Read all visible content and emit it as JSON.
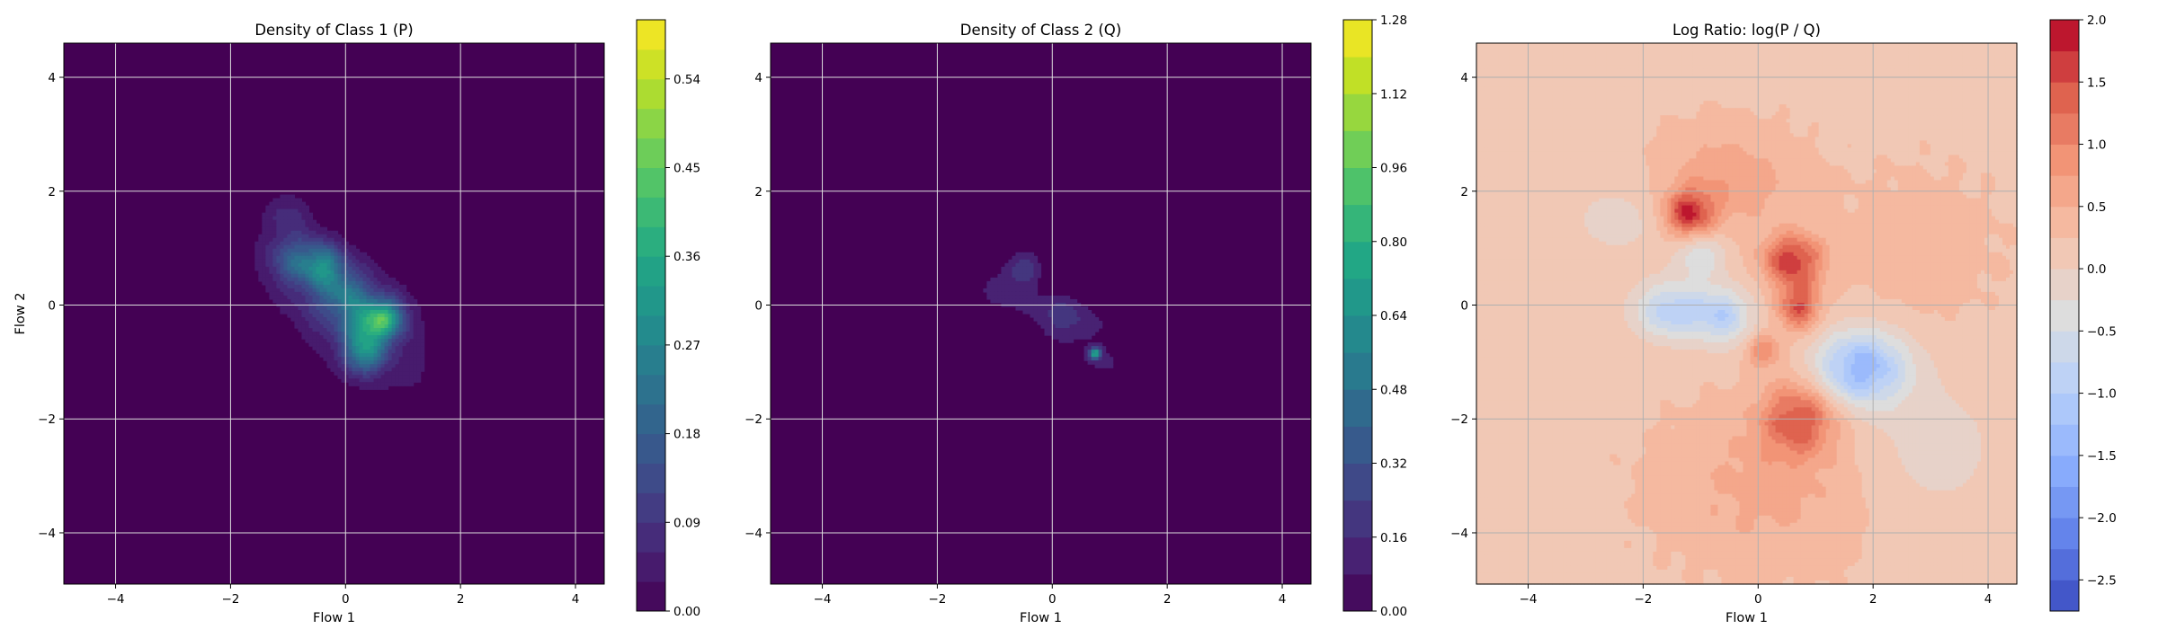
{
  "figure_title": "",
  "chart_data": [
    {
      "type": "heatmap",
      "subtype": "filled-contour",
      "title": "Density of Class 1 (P)",
      "xlabel": "Flow 1",
      "ylabel": "Flow 2",
      "xlim": [
        -4.9,
        4.5
      ],
      "ylim": [
        -4.9,
        4.6
      ],
      "xticks": [
        -4,
        -2,
        0,
        2,
        4
      ],
      "yticks": [
        -4,
        -2,
        0,
        2,
        4
      ],
      "grid": true,
      "colormap": "viridis",
      "background_color": "#440154",
      "colorbar": {
        "range": [
          0.0,
          0.6
        ],
        "levels": 20,
        "ticks": [
          0.0,
          0.09,
          0.18,
          0.27,
          0.36,
          0.45,
          0.54
        ],
        "tick_labels": [
          "0.00",
          "0.09",
          "0.18",
          "0.27",
          "0.36",
          "0.45",
          "0.54"
        ]
      },
      "blobs": [
        {
          "x": 0.0,
          "y": -0.1,
          "sx": 0.85,
          "sy": 0.85,
          "rho": -0.6,
          "v": 0.11
        },
        {
          "x": -0.4,
          "y": 0.7,
          "sx": 0.25,
          "sy": 0.25,
          "rho": 0.0,
          "v": 0.2
        },
        {
          "x": 0.7,
          "y": -0.2,
          "sx": 0.25,
          "sy": 0.25,
          "rho": 0.0,
          "v": 0.22
        },
        {
          "x": 0.4,
          "y": -0.4,
          "sx": 0.25,
          "sy": 0.25,
          "rho": 0.0,
          "v": 0.24
        },
        {
          "x": 0.3,
          "y": -0.9,
          "sx": 0.22,
          "sy": 0.22,
          "rho": 0.0,
          "v": 0.2
        },
        {
          "x": -0.9,
          "y": 0.8,
          "sx": 0.3,
          "sy": 0.3,
          "rho": 0.0,
          "v": 0.12
        },
        {
          "x": 0.0,
          "y": 0.2,
          "sx": 0.3,
          "sy": 0.3,
          "rho": 0.0,
          "v": 0.14
        },
        {
          "x": -1.0,
          "y": 1.6,
          "sx": 0.25,
          "sy": 0.25,
          "rho": 0.0,
          "v": 0.06
        }
      ]
    },
    {
      "type": "heatmap",
      "subtype": "filled-contour",
      "title": "Density of Class 2 (Q)",
      "xlabel": "Flow 1",
      "ylabel": "",
      "xlim": [
        -4.9,
        4.5
      ],
      "ylim": [
        -4.9,
        4.6
      ],
      "xticks": [
        -4,
        -2,
        0,
        2,
        4
      ],
      "yticks": [
        -4,
        -2,
        0,
        2,
        4
      ],
      "grid": true,
      "colormap": "viridis",
      "background_color": "#440154",
      "colorbar": {
        "range": [
          0.0,
          1.28
        ],
        "levels": 16,
        "ticks": [
          0.0,
          0.16,
          0.32,
          0.48,
          0.64,
          0.8,
          0.96,
          1.12,
          1.28
        ],
        "tick_labels": [
          "0.00",
          "0.16",
          "0.32",
          "0.48",
          "0.64",
          "0.80",
          "0.96",
          "1.12",
          "1.28"
        ]
      },
      "blobs": [
        {
          "x": 0.0,
          "y": -0.1,
          "sx": 0.85,
          "sy": 0.35,
          "rho": -0.75,
          "v": 0.1
        },
        {
          "x": -0.5,
          "y": 0.65,
          "sx": 0.2,
          "sy": 0.2,
          "rho": 0.0,
          "v": 0.22
        },
        {
          "x": 0.75,
          "y": -0.85,
          "sx": 0.07,
          "sy": 0.07,
          "rho": 0.0,
          "v": 0.7
        },
        {
          "x": 0.2,
          "y": -0.3,
          "sx": 0.3,
          "sy": 0.3,
          "rho": 0.0,
          "v": 0.12
        },
        {
          "x": 0.9,
          "y": -1.0,
          "sx": 0.3,
          "sy": 0.25,
          "rho": 0.0,
          "v": 0.09
        },
        {
          "x": -0.9,
          "y": 0.3,
          "sx": 0.25,
          "sy": 0.25,
          "rho": 0.0,
          "v": 0.07
        }
      ]
    },
    {
      "type": "heatmap",
      "subtype": "filled-contour",
      "title": "Log Ratio: log(P / Q)",
      "xlabel": "Flow 1",
      "ylabel": "",
      "xlim": [
        -4.9,
        4.5
      ],
      "ylim": [
        -4.9,
        4.6
      ],
      "xticks": [
        -4,
        -2,
        0,
        2,
        4
      ],
      "yticks": [
        -4,
        -2,
        0,
        2,
        4
      ],
      "grid": true,
      "colormap": "coolwarm",
      "colorbar": {
        "range": [
          -2.75,
          2.0
        ],
        "levels": 19,
        "ticks": [
          -2.5,
          -2.0,
          -1.5,
          -1.0,
          -0.5,
          0.0,
          0.5,
          1.0,
          1.5,
          2.0
        ],
        "tick_labels": [
          "−2.5",
          "−2.0",
          "−1.5",
          "−1.0",
          "−0.5",
          "0.0",
          "0.5",
          "1.0",
          "1.5",
          "2.0"
        ]
      },
      "blobs": [
        {
          "x": -1.2,
          "y": 1.6,
          "sx": 0.3,
          "sy": 0.3,
          "rho": 0.0,
          "v": 1.5
        },
        {
          "x": 0.6,
          "y": 0.8,
          "sx": 0.35,
          "sy": 0.3,
          "rho": 0.0,
          "v": 1.5
        },
        {
          "x": 0.7,
          "y": 0.0,
          "sx": 0.25,
          "sy": 0.3,
          "rho": 0.0,
          "v": 1.3
        },
        {
          "x": 0.7,
          "y": -2.0,
          "sx": 0.45,
          "sy": 0.45,
          "rho": 0.0,
          "v": 1.2
        },
        {
          "x": 0.1,
          "y": -0.8,
          "sx": 0.2,
          "sy": 0.2,
          "rho": 0.0,
          "v": 0.8
        },
        {
          "x": -0.5,
          "y": 2.2,
          "sx": 0.8,
          "sy": 0.6,
          "rho": 0.0,
          "v": 0.5
        },
        {
          "x": 0.2,
          "y": -3.2,
          "sx": 1.2,
          "sy": 0.9,
          "rho": 0.0,
          "v": 0.4
        },
        {
          "x": -1.5,
          "y": -0.1,
          "sx": 0.45,
          "sy": 0.35,
          "rho": 0.0,
          "v": -1.1
        },
        {
          "x": -0.6,
          "y": -0.2,
          "sx": 0.35,
          "sy": 0.35,
          "rho": 0.0,
          "v": -1.0
        },
        {
          "x": 1.8,
          "y": -1.1,
          "sx": 0.55,
          "sy": 0.45,
          "rho": 0.0,
          "v": -1.6
        },
        {
          "x": -1.0,
          "y": 0.9,
          "sx": 0.3,
          "sy": 0.3,
          "rho": 0.0,
          "v": -0.7
        },
        {
          "x": -2.4,
          "y": 1.5,
          "sx": 0.7,
          "sy": 0.5,
          "rho": 0.0,
          "v": -0.3
        },
        {
          "x": 3.0,
          "y": -2.5,
          "sx": 1.0,
          "sy": 1.0,
          "rho": 0.0,
          "v": -0.3
        },
        {
          "x": 2.8,
          "y": 1.0,
          "sx": 1.0,
          "sy": 1.0,
          "rho": 0.0,
          "v": 0.15
        }
      ],
      "base_value": 0.2
    }
  ]
}
